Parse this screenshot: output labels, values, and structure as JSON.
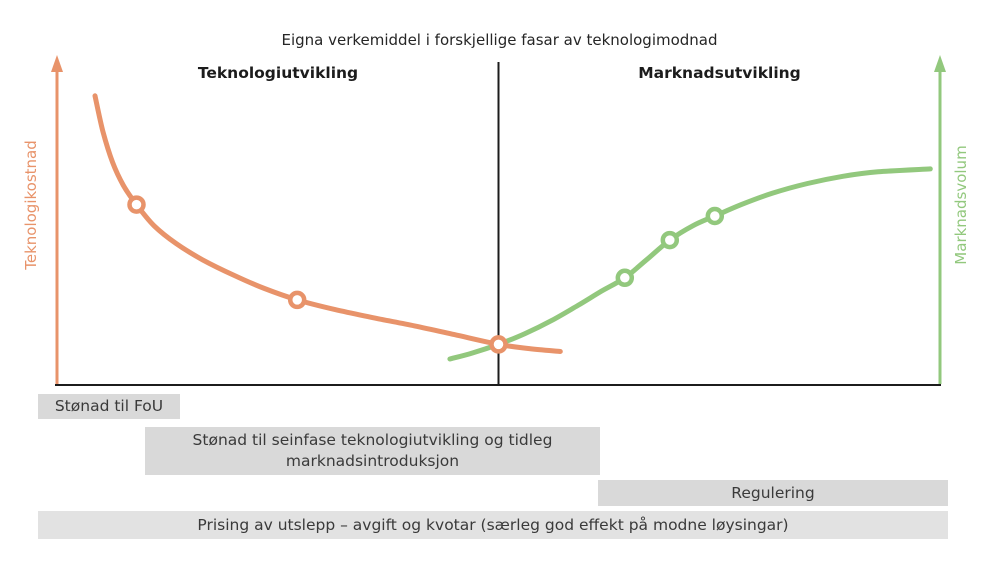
{
  "chart_data": {
    "type": "line",
    "title": "Eigna verkemiddel i forskjellige fasar av teknologimodnad",
    "phases": [
      {
        "label": "Teknologiutvikling"
      },
      {
        "label": "Marknadsutvikling"
      }
    ],
    "axes": {
      "left": {
        "label": "Teknologikostnad",
        "color": "#E8936A"
      },
      "right": {
        "label": "Marknadsvolum",
        "color": "#92C87D"
      },
      "x": {
        "color": "#1c1c1c"
      }
    },
    "x_range": [
      0,
      100
    ],
    "y_range": [
      0,
      100
    ],
    "divider_x": 50,
    "grid": false,
    "legend": "none",
    "series": [
      {
        "name": "Teknologikostnad",
        "color": "#E8936A",
        "axis": "left",
        "points": [
          [
            4.3,
            89
          ],
          [
            5.2,
            78
          ],
          [
            6.3,
            68.5
          ],
          [
            7.5,
            61.5
          ],
          [
            9,
            55.5
          ],
          [
            11,
            49
          ],
          [
            13.5,
            43.5
          ],
          [
            16.5,
            38.5
          ],
          [
            20,
            33.8
          ],
          [
            23.5,
            29.7
          ],
          [
            27.2,
            26.2
          ],
          [
            31.5,
            23.2
          ],
          [
            36,
            20.6
          ],
          [
            40.5,
            18.2
          ],
          [
            45,
            15.5
          ],
          [
            50,
            12.5
          ],
          [
            53.5,
            11.2
          ],
          [
            57,
            10.3
          ]
        ],
        "markers": [
          [
            9,
            55.5
          ],
          [
            27.2,
            26.2
          ],
          [
            50,
            12.5
          ]
        ]
      },
      {
        "name": "Marknadsvolum",
        "color": "#92C87D",
        "axis": "right",
        "points": [
          [
            44.5,
            8
          ],
          [
            47,
            9.8
          ],
          [
            50,
            12.5
          ],
          [
            53,
            15.8
          ],
          [
            56,
            19.8
          ],
          [
            59,
            24.5
          ],
          [
            61.5,
            28.6
          ],
          [
            64.3,
            33
          ],
          [
            66.8,
            38.6
          ],
          [
            69.4,
            44.6
          ],
          [
            72,
            49
          ],
          [
            74.5,
            52
          ],
          [
            77.5,
            55.5
          ],
          [
            81,
            59
          ],
          [
            85,
            62
          ],
          [
            89,
            64.2
          ],
          [
            93,
            65.6
          ],
          [
            98.9,
            66.5
          ]
        ],
        "markers": [
          [
            64.3,
            33
          ],
          [
            69.4,
            44.6
          ],
          [
            74.5,
            52
          ]
        ]
      }
    ],
    "interventions": [
      {
        "label": "Stønad til FoU",
        "bg": "#d9d9d9"
      },
      {
        "label": "Stønad til seinfase teknologiutvikling og tidleg marknadsintroduksjon",
        "bg": "#d9d9d9"
      },
      {
        "label": "Regulering",
        "bg": "#d9d9d9"
      },
      {
        "label": "Prising av utslepp – avgift og kvotar (særleg god effekt på modne løysingar)",
        "bg": "#e2e2e2"
      }
    ]
  }
}
